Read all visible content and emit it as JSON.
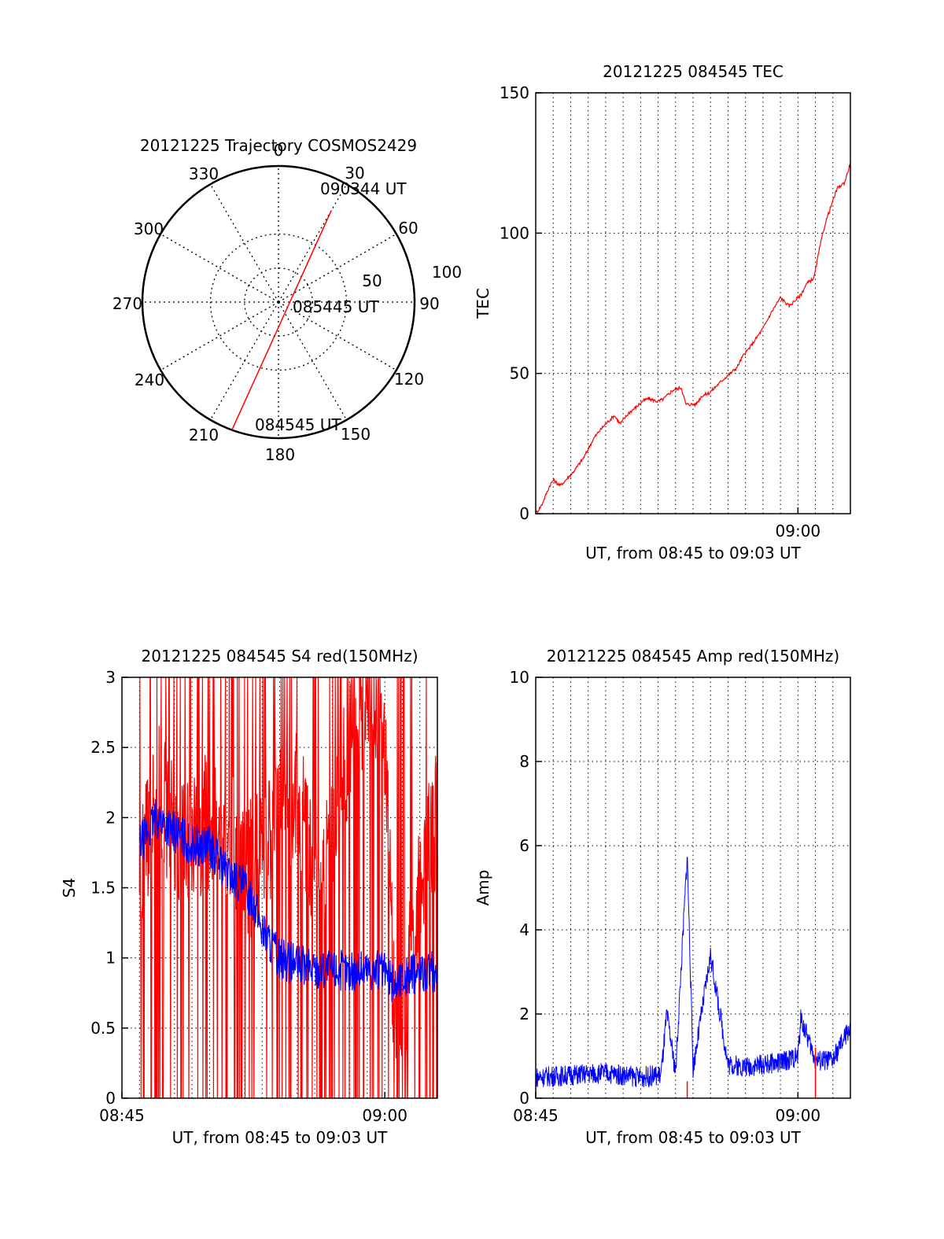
{
  "chart_data": [
    {
      "id": "trajectory",
      "type": "polar",
      "title": "20121225 Trajectory COSMOS2429",
      "azimuth_labels": [
        "0",
        "30",
        "60",
        "90",
        "120",
        "150",
        "180",
        "210",
        "240",
        "270",
        "300",
        "330"
      ],
      "radial_labels": [
        "50",
        "100"
      ],
      "annotations": [
        "090344 UT",
        "085445 UT",
        "084545 UT"
      ],
      "track": {
        "start": {
          "azimuth": 200,
          "zenith": 90,
          "label": "084545 UT"
        },
        "end": {
          "azimuth": 30,
          "zenith": 70,
          "label": "090344 UT"
        }
      },
      "colors": {
        "track": "#ff0000"
      }
    },
    {
      "id": "tec",
      "type": "line",
      "title": "20121225 084545 TEC",
      "xlabel": "UT, from 08:45 to 09:03 UT",
      "ylabel": "TEC",
      "xlim": [
        "08:45",
        "09:03"
      ],
      "ylim": [
        0,
        150
      ],
      "yticks": [
        "0",
        "50",
        "100",
        "150"
      ],
      "xticks": [
        "09:00"
      ],
      "grid": true,
      "series": [
        {
          "color": "#ff0000",
          "x": [
            "08:45:00",
            "08:45:20",
            "08:45:48",
            "08:46:00",
            "08:46:25",
            "08:47:10",
            "08:47:45",
            "08:48:20",
            "08:48:35",
            "08:49:00",
            "08:49:30",
            "08:49:50",
            "08:50:20",
            "08:50:45",
            "08:51:05",
            "08:51:25",
            "08:52:00",
            "08:52:20",
            "08:52:50",
            "08:53:20",
            "08:53:35",
            "08:54:10",
            "08:54:30",
            "08:54:55",
            "08:55:45",
            "08:56:30",
            "08:56:50",
            "08:57:05",
            "08:57:20",
            "08:58:00",
            "08:58:30",
            "08:59:00",
            "08:59:30",
            "09:00:10",
            "09:00:30",
            "09:00:55",
            "09:01:15",
            "09:01:35",
            "09:01:55",
            "09:02:15",
            "09:02:40",
            "09:03:00"
          ],
          "values": [
            0,
            3,
            10,
            12,
            10,
            15,
            20,
            27,
            29,
            32,
            35,
            32,
            36,
            38,
            40,
            41,
            40,
            41,
            44,
            45,
            39,
            39,
            42,
            43,
            48,
            52,
            56,
            58,
            60,
            66,
            72,
            77,
            74,
            78,
            82,
            84,
            95,
            104,
            110,
            116,
            118,
            125
          ]
        }
      ]
    },
    {
      "id": "s4",
      "type": "line",
      "title": "20121225 084545 S4 red(150MHz)",
      "xlabel": "UT, from 08:45 to 09:03 UT",
      "ylabel": "S4",
      "xlim": [
        "08:45",
        "09:03"
      ],
      "ylim": [
        0,
        3
      ],
      "yticks": [
        "0",
        "0.5",
        "1",
        "1.5",
        "2",
        "2.5",
        "3"
      ],
      "xticks": [
        "08:45",
        "09:00"
      ],
      "grid": true,
      "series": [
        {
          "color": "#ff0000",
          "x": [
            "08:46:00",
            "08:47:00",
            "08:48:00",
            "08:49:00",
            "08:50:00",
            "08:51:00",
            "08:52:00",
            "08:53:00",
            "08:54:00",
            "08:55:00",
            "08:56:00",
            "08:57:00",
            "08:58:00",
            "08:59:00",
            "09:00:00",
            "09:00:30",
            "09:01:00",
            "09:01:30",
            "09:02:00",
            "09:02:30",
            "09:03:00"
          ],
          "values": [
            1.6,
            2.2,
            1.9,
            1.8,
            2.0,
            1.9,
            1.6,
            1.7,
            2.0,
            2.2,
            1.5,
            1.8,
            2.6,
            2.8,
            2.6,
            0.7,
            0.6,
            1.0,
            1.5,
            1.8,
            2.0
          ]
        },
        {
          "color": "#0000ff",
          "x": [
            "08:46:00",
            "08:47:00",
            "08:48:00",
            "08:49:00",
            "08:50:00",
            "08:51:00",
            "08:52:00",
            "08:52:30",
            "08:53:00",
            "08:53:30",
            "08:54:00",
            "08:55:00",
            "08:56:00",
            "08:57:00",
            "08:58:00",
            "08:59:00",
            "09:00:00",
            "09:00:30",
            "09:01:00",
            "09:02:00",
            "09:03:00"
          ],
          "values": [
            1.8,
            2.0,
            1.9,
            1.8,
            1.8,
            1.6,
            1.5,
            1.4,
            1.2,
            1.1,
            1.0,
            0.95,
            0.92,
            0.92,
            0.9,
            0.92,
            0.9,
            0.8,
            0.85,
            0.9,
            0.9
          ]
        }
      ]
    },
    {
      "id": "amp",
      "type": "line",
      "title": "20121225 084545 Amp red(150MHz)",
      "xlabel": "UT, from 08:45 to 09:03 UT",
      "ylabel": "Amp",
      "xlim": [
        "08:45",
        "09:03"
      ],
      "ylim": [
        0,
        10
      ],
      "yticks": [
        "0",
        "2",
        "4",
        "6",
        "8",
        "10"
      ],
      "xticks": [
        "08:45",
        "09:00"
      ],
      "grid": true,
      "series": [
        {
          "color": "#0000ff",
          "x": [
            "08:45:00",
            "08:47:00",
            "08:49:00",
            "08:51:00",
            "08:52:10",
            "08:52:30",
            "08:53:00",
            "08:53:40",
            "08:54:00",
            "08:55:00",
            "08:56:00",
            "08:57:00",
            "08:58:00",
            "08:59:00",
            "09:00:00",
            "09:00:10",
            "09:01:00",
            "09:02:00",
            "09:03:00"
          ],
          "values": [
            0.5,
            0.55,
            0.6,
            0.5,
            0.55,
            2.0,
            0.6,
            5.8,
            0.7,
            3.4,
            0.8,
            0.75,
            0.8,
            0.85,
            1.0,
            1.9,
            0.9,
            0.9,
            1.7
          ]
        },
        {
          "color": "#ff0000",
          "x": [
            "08:53:40",
            "09:01:00"
          ],
          "values": [
            0.4,
            1.2
          ]
        }
      ]
    }
  ]
}
